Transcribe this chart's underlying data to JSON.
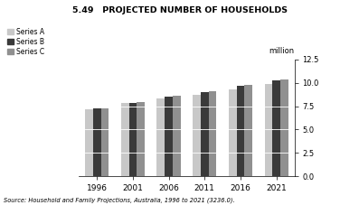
{
  "title": "5.49   PROJECTED NUMBER OF HOUSEHOLDS",
  "ylabel": "million",
  "source_text": "Source: Household and Family Projections, Australia, 1996 to 2021 (3236.0).",
  "categories": [
    "1996",
    "2001",
    "2006",
    "2011",
    "2016",
    "2021"
  ],
  "series_labels": [
    "Series A",
    "Series B",
    "Series C"
  ],
  "colors": [
    "#c8c8c8",
    "#3a3a3a",
    "#909090"
  ],
  "ylim": [
    0,
    12.5
  ],
  "yticks": [
    0.0,
    2.5,
    5.0,
    7.5,
    10.0,
    12.5
  ],
  "values": {
    "Series A": [
      7.2,
      7.8,
      8.3,
      8.7,
      9.3,
      9.9
    ],
    "Series B": [
      7.25,
      7.88,
      8.52,
      8.98,
      9.68,
      10.22
    ],
    "Series C": [
      7.25,
      7.9,
      8.58,
      9.12,
      9.78,
      10.38
    ]
  },
  "bar_width": 0.22,
  "background_color": "#ffffff",
  "bar_segment_lines": [
    2.5,
    5.0,
    7.5
  ]
}
